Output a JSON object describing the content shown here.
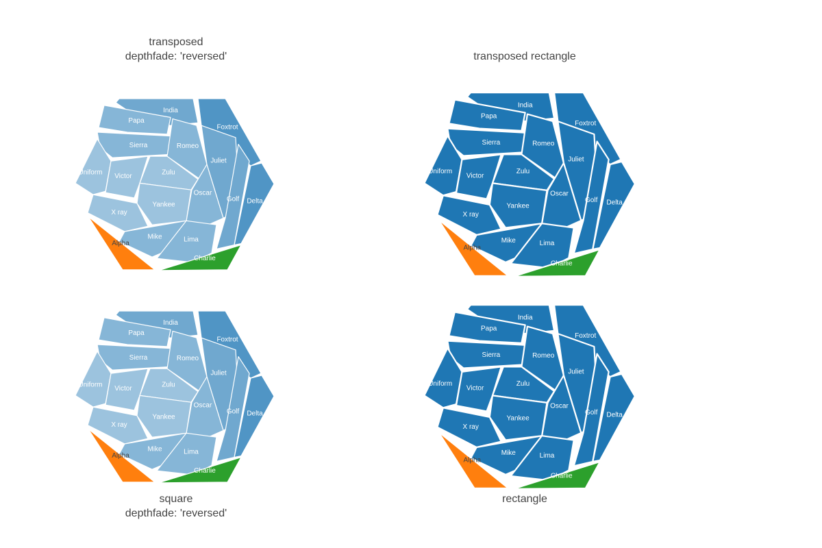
{
  "chart_data": [
    {
      "type": "treemap",
      "tiling": "voronoi",
      "titles": [
        "transposed",
        "depthfade: 'reversed'"
      ],
      "depthfade": "reversed",
      "colors": {
        "blue": "#1f77b4",
        "orange": "#ff7f0e",
        "green": "#2ca02c"
      },
      "cells": [
        "India",
        "Papa",
        "Foxtrot",
        "Sierra",
        "Romeo",
        "Uniform",
        "Victor",
        "Zulu",
        "Juliet",
        "Golf",
        "Delta",
        "Oscar",
        "Yankee",
        "X ray",
        "Mike",
        "Lima",
        "Alpha",
        "Charlie"
      ]
    },
    {
      "type": "treemap",
      "tiling": "voronoi",
      "titles": [
        "transposed rectangle"
      ],
      "colors": {
        "blue": "#1f77b4",
        "orange": "#ff7f0e",
        "green": "#2ca02c"
      },
      "cells": [
        "India",
        "Papa",
        "Foxtrot",
        "Sierra",
        "Romeo",
        "Uniform",
        "Victor",
        "Zulu",
        "Juliet",
        "Golf",
        "Delta",
        "Oscar",
        "Yankee",
        "X ray",
        "Mike",
        "Lima",
        "Alpha",
        "Charlie"
      ]
    },
    {
      "type": "treemap",
      "tiling": "voronoi",
      "titles": [
        "square",
        "depthfade: 'reversed'"
      ],
      "depthfade": "reversed",
      "colors": {
        "blue": "#1f77b4",
        "orange": "#ff7f0e",
        "green": "#2ca02c"
      },
      "cells": [
        "India",
        "Papa",
        "Foxtrot",
        "Sierra",
        "Romeo",
        "Uniform",
        "Victor",
        "Zulu",
        "Juliet",
        "Golf",
        "Delta",
        "Oscar",
        "Yankee",
        "X ray",
        "Mike",
        "Lima",
        "Alpha",
        "Charlie"
      ]
    },
    {
      "type": "treemap",
      "tiling": "voronoi",
      "titles": [
        "rectangle"
      ],
      "colors": {
        "blue": "#1f77b4",
        "orange": "#ff7f0e",
        "green": "#2ca02c"
      },
      "cells": [
        "India",
        "Papa",
        "Foxtrot",
        "Sierra",
        "Romeo",
        "Uniform",
        "Victor",
        "Zulu",
        "Juliet",
        "Golf",
        "Delta",
        "Oscar",
        "Yankee",
        "X ray",
        "Mike",
        "Lima",
        "Alpha",
        "Charlie"
      ]
    }
  ]
}
